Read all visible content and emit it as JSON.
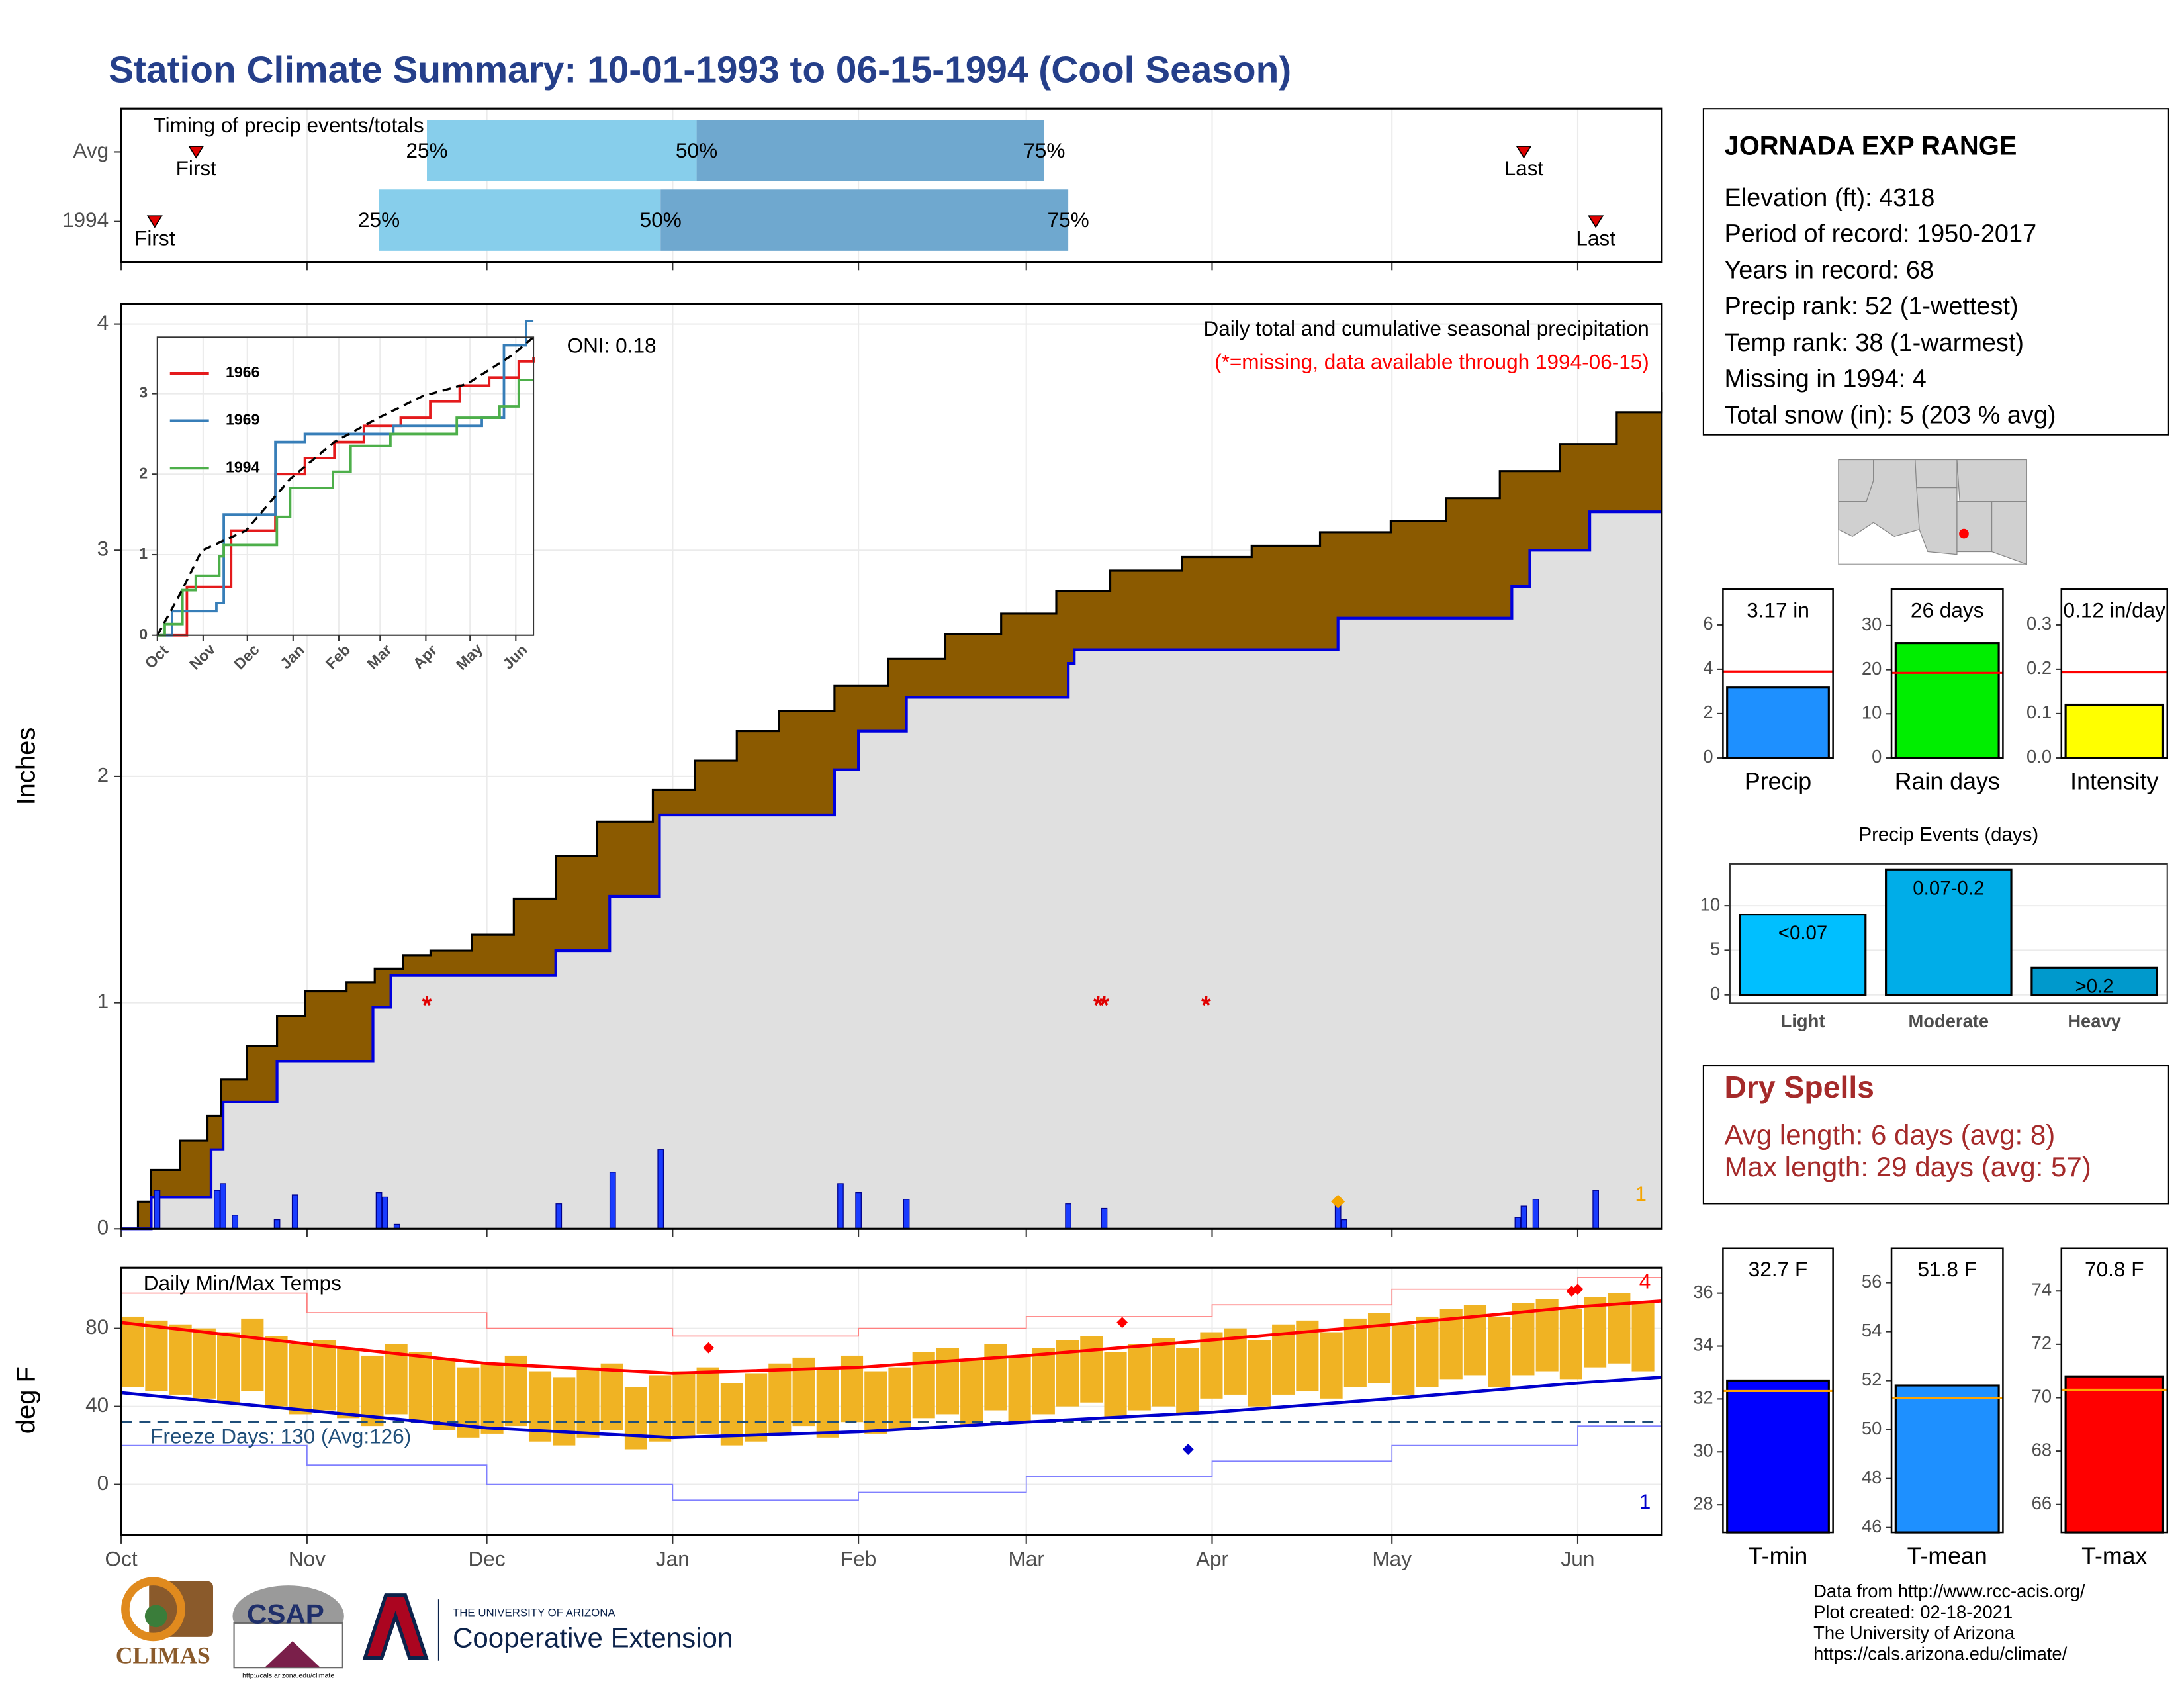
{
  "title": "Station Climate Summary: 10-01-1993 to 06-15-1994 (Cool Season)",
  "station": {
    "name": "JORNADA EXP RANGE",
    "lines": [
      "Elevation (ft): 4318",
      "Period of record: 1950-2017",
      "Years in record: 68",
      "Precip rank: 52 (1-wettest)",
      "Temp rank: 38 (1-warmest)",
      "Missing in 1994: 4",
      "Total snow (in): 5 (203 % avg)"
    ]
  },
  "dry_spells": {
    "title": "Dry Spells",
    "lines": [
      "Avg length: 6 days (avg: 8)",
      "Max length: 29 days (avg: 57)"
    ]
  },
  "footer": {
    "lines": [
      "Data from http://www.rcc-acis.org/",
      "Plot created: 02-18-2021",
      "The University of Arizona",
      "https://cals.arizona.edu/climate/"
    ]
  },
  "logos": {
    "climas": "CLIMAS",
    "csap": "CSAP",
    "csap_url": "http://cals.arizona.edu/climate",
    "university": "THE UNIVERSITY OF ARIZONA",
    "extension": "Cooperative Extension"
  },
  "chart_data": [
    {
      "type": "timing",
      "title": "Timing of precip events/totals",
      "xlim": [
        0,
        257
      ],
      "xticks": [
        0,
        31,
        61,
        92,
        123,
        151,
        182,
        212,
        243
      ],
      "grid": true,
      "rows": [
        {
          "name": "Avg",
          "first": 12.5,
          "quartiles": [
            51,
            96,
            154
          ],
          "last": 234
        },
        {
          "name": "1994",
          "first": 5.6,
          "quartiles": [
            43,
            90,
            158
          ],
          "last": 246
        }
      ],
      "quartile_labels": [
        "25%",
        "50%",
        "75%"
      ],
      "first_label": "First",
      "last_label": "Last",
      "colors": [
        "#87ceeb",
        "#6fa8cf"
      ],
      "marker_color": "#e00000"
    },
    {
      "type": "cumulative",
      "title": "Daily total and cumulative seasonal precipitation",
      "subtitle": "(*=missing, data available through 1994-06-15)",
      "annotation": "ONI: 0.18",
      "y_label": "Inches",
      "xlim": [
        0,
        257
      ],
      "ylim": [
        0,
        4.09
      ],
      "yticks": [
        0,
        1,
        2,
        3,
        4
      ],
      "xticks": [
        0,
        31,
        61,
        92,
        123,
        151,
        182,
        212,
        243
      ],
      "grid": true,
      "cumulative_avg": {
        "color": "#8b5a00",
        "x": [
          0,
          2.8,
          5,
          9.8,
          14.4,
          16.7,
          21,
          26,
          30.7,
          37.6,
          42.3,
          47,
          51.6,
          58.5,
          65.5,
          72.5,
          79.4,
          88.7,
          95.7,
          102.7,
          109.7,
          119,
          128,
          137.5,
          146.8,
          156,
          165,
          177,
          188.6,
          200,
          211.8,
          221,
          230,
          240,
          249.5,
          257
        ],
        "values": [
          0,
          0.12,
          0.26,
          0.39,
          0.5,
          0.66,
          0.81,
          0.94,
          1.05,
          1.09,
          1.15,
          1.21,
          1.23,
          1.3,
          1.46,
          1.65,
          1.8,
          1.94,
          2.07,
          2.2,
          2.29,
          2.4,
          2.52,
          2.63,
          2.72,
          2.82,
          2.91,
          2.97,
          3.02,
          3.08,
          3.13,
          3.23,
          3.35,
          3.47,
          3.61,
          3.7
        ]
      },
      "cumulative_1994": {
        "color": "#0000dd",
        "fill": "#e0e0e0",
        "x": [
          0,
          5,
          15,
          17,
          26,
          42,
          45,
          72.5,
          81.5,
          89.8,
          119,
          123,
          131,
          158,
          159,
          203,
          232,
          235,
          245,
          257
        ],
        "values": [
          0,
          0.14,
          0.35,
          0.56,
          0.74,
          0.98,
          1.12,
          1.23,
          1.47,
          1.83,
          2.03,
          2.2,
          2.35,
          2.5,
          2.56,
          2.7,
          2.84,
          3.0,
          3.17,
          3.17
        ]
      },
      "daily": {
        "color": "#1a3cff",
        "x": [
          6,
          16,
          17,
          19,
          26,
          29,
          43,
          44,
          46,
          73,
          82,
          90,
          120,
          123,
          131,
          158,
          164,
          203,
          204,
          233,
          234,
          236,
          246
        ],
        "values": [
          0.17,
          0.17,
          0.2,
          0.06,
          0.04,
          0.15,
          0.16,
          0.14,
          0.02,
          0.11,
          0.25,
          0.35,
          0.2,
          0.16,
          0.13,
          0.11,
          0.09,
          0.11,
          0.04,
          0.05,
          0.1,
          0.13,
          0.17
        ]
      },
      "missing": {
        "label": "*",
        "color": "#e00000",
        "x": [
          51,
          163,
          164,
          181
        ],
        "values": [
          1,
          1,
          1,
          1
        ]
      },
      "snow": {
        "color": "#f5a500",
        "x": [
          203
        ],
        "values": [
          0.12
        ]
      },
      "corner_label": "1"
    },
    {
      "type": "line",
      "xlim": [
        0,
        255
      ],
      "ylim": [
        0,
        3.7
      ],
      "yticks": [
        0,
        1,
        2,
        3
      ],
      "grid": true,
      "xticks": [
        {
          "value": 0,
          "label": "Oct"
        },
        {
          "value": 31,
          "label": "Nov"
        },
        {
          "value": 61,
          "label": "Dec"
        },
        {
          "value": 92,
          "label": "Jan"
        },
        {
          "value": 123,
          "label": "Feb"
        },
        {
          "value": 151,
          "label": "Mar"
        },
        {
          "value": 182,
          "label": "Apr"
        },
        {
          "value": 212,
          "label": "May"
        },
        {
          "value": 243,
          "label": "Jun"
        }
      ],
      "legend": "top-left",
      "series": [
        {
          "name": "1966",
          "color": "#e41a1c",
          "x": [
            0,
            20,
            45,
            50,
            75,
            80,
            100,
            120,
            140,
            165,
            185,
            205,
            225,
            245,
            255
          ],
          "values": [
            0,
            0.6,
            0.6,
            1.3,
            1.3,
            2.0,
            2.2,
            2.4,
            2.6,
            2.7,
            2.9,
            3.1,
            3.2,
            3.4,
            3.45
          ]
        },
        {
          "name": "1969",
          "color": "#377eb8",
          "x": [
            0,
            10,
            40,
            45,
            70,
            80,
            100,
            160,
            220,
            235,
            250,
            255
          ],
          "values": [
            0,
            0.3,
            0.4,
            1.5,
            1.5,
            2.4,
            2.5,
            2.6,
            2.7,
            3.6,
            3.9,
            3.9
          ]
        },
        {
          "name": "1994",
          "color": "#4daf4a",
          "x": [
            0,
            5,
            17,
            26,
            42,
            45,
            81,
            90,
            119,
            131,
            158,
            203,
            232,
            245,
            255
          ],
          "values": [
            0,
            0.14,
            0.56,
            0.74,
            0.98,
            1.12,
            1.47,
            1.83,
            2.03,
            2.35,
            2.5,
            2.7,
            2.84,
            3.17,
            3.17
          ]
        }
      ],
      "average": {
        "color": "#000000",
        "x": [
          0,
          15,
          30,
          60,
          90,
          120,
          150,
          180,
          210,
          240,
          255
        ],
        "values": [
          0,
          0.5,
          1.05,
          1.3,
          1.94,
          2.4,
          2.7,
          2.97,
          3.12,
          3.47,
          3.7
        ]
      }
    },
    {
      "type": "temps",
      "title": "Daily Min/Max Temps",
      "y_label": "deg F",
      "xlim": [
        0,
        257
      ],
      "ylim": [
        -26,
        111
      ],
      "yticks": [
        0,
        40,
        80
      ],
      "grid": true,
      "xticks": [
        {
          "value": 0,
          "label": "Oct"
        },
        {
          "value": 31,
          "label": "Nov"
        },
        {
          "value": 61,
          "label": "Dec"
        },
        {
          "value": 92,
          "label": "Jan"
        },
        {
          "value": 123,
          "label": "Feb"
        },
        {
          "value": 151,
          "label": "Mar"
        },
        {
          "value": 182,
          "label": "Apr"
        },
        {
          "value": 212,
          "label": "May"
        },
        {
          "value": 243,
          "label": "Jun"
        }
      ],
      "freeze_label": "Freeze Days: 130 (Avg:126)",
      "freeze_line": 32,
      "freeze_color": "#1f4e79",
      "bars": {
        "color": "#f0b323",
        "x": [
          0,
          4,
          8,
          12,
          16,
          20,
          24,
          28,
          32,
          36,
          40,
          44,
          48,
          52,
          56,
          60,
          64,
          68,
          72,
          76,
          80,
          84,
          88,
          92,
          96,
          100,
          104,
          108,
          112,
          116,
          120,
          124,
          128,
          132,
          136,
          140,
          144,
          148,
          152,
          156,
          160,
          164,
          168,
          172,
          176,
          180,
          184,
          188,
          192,
          196,
          200,
          204,
          208,
          212,
          216,
          220,
          224,
          228,
          232,
          236,
          240,
          244,
          248,
          252
        ],
        "tmax": [
          86,
          84,
          82,
          80,
          78,
          85,
          76,
          72,
          74,
          70,
          66,
          72,
          68,
          64,
          60,
          62,
          66,
          58,
          55,
          60,
          62,
          50,
          56,
          58,
          60,
          52,
          57,
          62,
          65,
          60,
          66,
          58,
          60,
          68,
          70,
          64,
          72,
          66,
          70,
          74,
          76,
          68,
          72,
          75,
          70,
          78,
          80,
          74,
          82,
          84,
          78,
          85,
          88,
          82,
          86,
          90,
          92,
          86,
          93,
          95,
          90,
          96,
          98,
          94
        ],
        "tmin": [
          50,
          48,
          46,
          44,
          42,
          48,
          40,
          36,
          38,
          34,
          30,
          36,
          32,
          28,
          24,
          26,
          30,
          22,
          20,
          24,
          28,
          18,
          22,
          24,
          26,
          20,
          22,
          26,
          30,
          24,
          32,
          26,
          28,
          34,
          36,
          30,
          38,
          32,
          36,
          40,
          42,
          34,
          38,
          40,
          36,
          44,
          46,
          40,
          46,
          48,
          44,
          50,
          52,
          46,
          50,
          54,
          56,
          50,
          56,
          58,
          54,
          60,
          62,
          58
        ]
      },
      "normal_max": {
        "color": "#ff0000",
        "x": [
          0,
          31,
          61,
          92,
          123,
          151,
          182,
          212,
          243,
          257
        ],
        "values": [
          83,
          72,
          62,
          57,
          60,
          66,
          74,
          82,
          91,
          94
        ]
      },
      "normal_min": {
        "color": "#0000cc",
        "x": [
          0,
          31,
          61,
          92,
          123,
          151,
          182,
          212,
          243,
          257
        ],
        "values": [
          47,
          38,
          29,
          24,
          27,
          32,
          37,
          44,
          52,
          55
        ]
      },
      "record_max": {
        "color": "#ff7f7f",
        "x": [
          0,
          31,
          61,
          92,
          123,
          151,
          182,
          212,
          243,
          257
        ],
        "values": [
          98,
          88,
          80,
          76,
          80,
          86,
          92,
          100,
          106,
          108
        ]
      },
      "record_min": {
        "color": "#8080ff",
        "x": [
          0,
          31,
          61,
          92,
          123,
          151,
          182,
          212,
          243,
          257
        ],
        "values": [
          20,
          10,
          0,
          -8,
          -4,
          4,
          12,
          20,
          30,
          34
        ]
      },
      "record_high_marks": {
        "color": "#ff0000",
        "x": [
          98,
          167,
          242,
          243
        ],
        "values": [
          70,
          83,
          99,
          100
        ]
      },
      "record_low_marks": {
        "color": "#0000cc",
        "x": [
          178
        ],
        "values": [
          18
        ]
      },
      "high_count_label": "4",
      "low_count_label": "1"
    },
    {
      "type": "single-bar",
      "categories": [
        "Precip"
      ],
      "values": [
        3.17
      ],
      "value_labels": [
        "3.17 in"
      ],
      "color": "#1e90ff",
      "average": 3.9,
      "average_color": "#ff0000",
      "ylim": [
        0,
        7.6
      ],
      "yticks": [
        0,
        2,
        4,
        6
      ]
    },
    {
      "type": "single-bar",
      "categories": [
        "Rain days"
      ],
      "values": [
        26
      ],
      "value_labels": [
        "26 days"
      ],
      "color": "#00ee00",
      "average": 19.3,
      "average_color": "#ff0000",
      "ylim": [
        0,
        38.2
      ],
      "yticks": [
        0,
        10,
        20,
        30
      ]
    },
    {
      "type": "single-bar",
      "categories": [
        "Intensity"
      ],
      "values": [
        0.12
      ],
      "value_labels": [
        "0.12 in/day"
      ],
      "color": "#ffff00",
      "average": 0.193,
      "average_color": "#ff0000",
      "ylim": [
        0,
        0.38
      ],
      "yticks": [
        {
          "value": 0,
          "label": "0.0"
        },
        0.1,
        0.2,
        0.3
      ]
    },
    {
      "type": "bar",
      "title": "Precip Events (days)",
      "categories": [
        "Light",
        "Moderate",
        "Heavy"
      ],
      "values": [
        9,
        14,
        3
      ],
      "bar_labels": [
        "<0.07",
        "0.07-0.2",
        ">0.2"
      ],
      "colors": [
        "#00bfff",
        "#00ade8",
        "#0099cc"
      ],
      "ylim": [
        -0.94,
        14.7
      ],
      "yticks": [
        0,
        5,
        10
      ],
      "grid": true
    },
    {
      "type": "single-bar",
      "categories": [
        "T-min"
      ],
      "values": [
        32.7
      ],
      "value_labels": [
        "32.7 F"
      ],
      "color": "#0000ff",
      "average": 32.3,
      "average_color": "#ffa500",
      "ylim": [
        26.95,
        37.7
      ],
      "yticks": [
        28,
        30,
        32,
        34,
        36
      ]
    },
    {
      "type": "single-bar",
      "categories": [
        "T-mean"
      ],
      "values": [
        51.8
      ],
      "value_labels": [
        "51.8 F"
      ],
      "color": "#1e90ff",
      "average": 51.3,
      "average_color": "#ffa500",
      "ylim": [
        45.8,
        57.4
      ],
      "yticks": [
        46,
        48,
        50,
        52,
        54,
        56
      ]
    },
    {
      "type": "single-bar",
      "categories": [
        "T-max"
      ],
      "values": [
        70.8
      ],
      "value_labels": [
        "70.8 F"
      ],
      "color": "#ff0000",
      "average": 70.3,
      "average_color": "#ffa500",
      "ylim": [
        64.95,
        75.6
      ],
      "yticks": [
        66,
        68,
        70,
        72,
        74
      ]
    }
  ]
}
